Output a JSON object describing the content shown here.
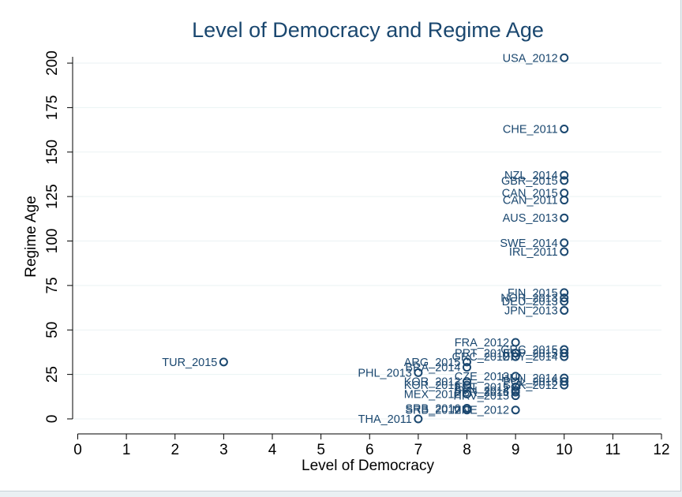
{
  "chart_data": {
    "type": "scatter",
    "title": "Level of Democracy and Regime Age",
    "xlabel": "Level of Democracy",
    "ylabel": "Regime Age",
    "xlim": [
      -0.3,
      12
    ],
    "ylim": [
      -4,
      208
    ],
    "xticks": [
      "0",
      "1",
      "2",
      "3",
      "4",
      "5",
      "6",
      "7",
      "8",
      "9",
      "10",
      "11",
      "12"
    ],
    "yticks": [
      "0",
      "25",
      "50",
      "75",
      "100",
      "125",
      "150",
      "175",
      "200"
    ],
    "grid": true,
    "points": [
      {
        "label": "USA_2012",
        "x": 10,
        "y": 203
      },
      {
        "label": "CHE_2011",
        "x": 10,
        "y": 163
      },
      {
        "label": "NZL_2014",
        "x": 10,
        "y": 137
      },
      {
        "label": "GBR_2015",
        "x": 10,
        "y": 134
      },
      {
        "label": "CAN_2015",
        "x": 10,
        "y": 127
      },
      {
        "label": "CAN_2011",
        "x": 10,
        "y": 123
      },
      {
        "label": "AUS_2013",
        "x": 10,
        "y": 113
      },
      {
        "label": "SWE_2014",
        "x": 10,
        "y": 99
      },
      {
        "label": "IRL_2011",
        "x": 10,
        "y": 94
      },
      {
        "label": "FIN_2015",
        "x": 10,
        "y": 71
      },
      {
        "label": "NOR_2013",
        "x": 10,
        "y": 68
      },
      {
        "label": "DEU_2013",
        "x": 10,
        "y": 66
      },
      {
        "label": "JPN_2013",
        "x": 10,
        "y": 61
      },
      {
        "label": "FRA_2012",
        "x": 9,
        "y": 43
      },
      {
        "label": "GRC_2015",
        "x": 10,
        "y": 39
      },
      {
        "label": "ESP_2015",
        "x": 10,
        "y": 37
      },
      {
        "label": "PRT_2015",
        "x": 9,
        "y": 37
      },
      {
        "label": "URY_2014",
        "x": 10,
        "y": 35
      },
      {
        "label": "GRC_2012",
        "x": 9,
        "y": 35
      },
      {
        "label": "ARG_2015",
        "x": 8,
        "y": 32
      },
      {
        "label": "TUR_2015",
        "x": 3,
        "y": 32
      },
      {
        "label": "BRA_2014",
        "x": 8,
        "y": 29
      },
      {
        "label": "PHL_2013",
        "x": 7,
        "y": 26
      },
      {
        "label": "CZE_2013",
        "x": 9,
        "y": 24
      },
      {
        "label": "HUN_2014",
        "x": 10,
        "y": 23
      },
      {
        "label": "POL_2015",
        "x": 10,
        "y": 21
      },
      {
        "label": "KOR_2012",
        "x": 8,
        "y": 21
      },
      {
        "label": "KOR_2016",
        "x": 8,
        "y": 19
      },
      {
        "label": "SVK_2012",
        "x": 10,
        "y": 19
      },
      {
        "label": "EST_2015",
        "x": 9,
        "y": 18
      },
      {
        "label": "SVN_2014",
        "x": 9,
        "y": 16
      },
      {
        "label": "PER_2016",
        "x": 9,
        "y": 15
      },
      {
        "label": "MEX_2012",
        "x": 8,
        "y": 14
      },
      {
        "label": "HRV_2015",
        "x": 9,
        "y": 13
      },
      {
        "label": "SRB_2016",
        "x": 8,
        "y": 6
      },
      {
        "label": "SRB_2012",
        "x": 8,
        "y": 5
      },
      {
        "label": "MNE_2012",
        "x": 9,
        "y": 5
      },
      {
        "label": "THA_2011",
        "x": 7,
        "y": 0
      }
    ]
  }
}
